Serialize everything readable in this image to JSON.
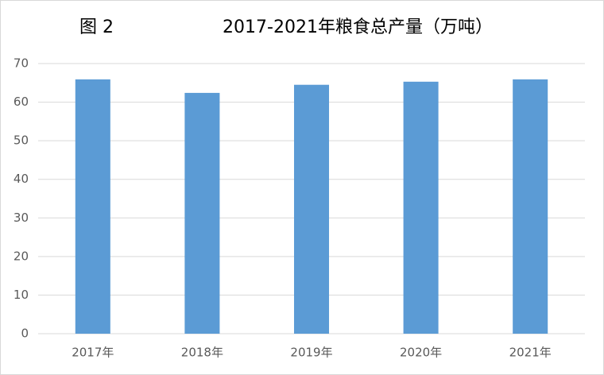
{
  "chart_data": {
    "type": "bar",
    "figure_label": "图 2",
    "title": "2017-2021年粮食总产量（万吨）",
    "categories": [
      "2017年",
      "2018年",
      "2019年",
      "2020年",
      "2021年"
    ],
    "values": [
      65.9,
      62.4,
      64.5,
      65.3,
      65.9
    ],
    "color": "#5b9bd5",
    "ylim": [
      0,
      70
    ],
    "yticks": [
      0,
      10,
      20,
      30,
      40,
      50,
      60,
      70
    ],
    "grid": true
  }
}
